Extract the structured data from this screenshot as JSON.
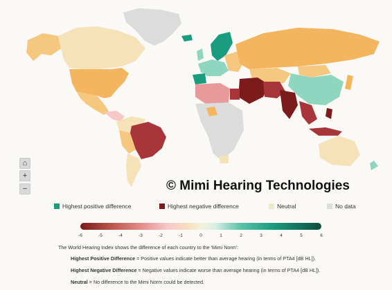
{
  "watermark": "© Mimi Hearing Technologies",
  "zoom": {
    "home_icon": "home-icon",
    "plus": "+",
    "minus": "−"
  },
  "legend": [
    {
      "label": "Highest positive difference",
      "color": "#1a9c7e"
    },
    {
      "label": "Highest negative difference",
      "color": "#7b1b1b"
    },
    {
      "label": "Neutral",
      "color": "#ece8c8"
    },
    {
      "label": "No data",
      "color": "#dcdcdc"
    }
  ],
  "scale": {
    "ticks": [
      "-6",
      "-5",
      "-4",
      "-3",
      "-2",
      "-1",
      "0",
      "1",
      "2",
      "3",
      "4",
      "5",
      "6"
    ],
    "min": -6,
    "max": 6
  },
  "notes": {
    "intro": "The World Hearing Index shows the difference of each country to the 'Mimi Norm':",
    "pos_bold": "Highest Positive Difference",
    "pos_text": " = Positive values indicate better than average hearing (in terms of PTA4 [dB HL]).",
    "neg_bold": "Highest Negative Difference",
    "neg_text": " = Negative values indicate worse than average hearing (in terms of PTA4 [dB HL]).",
    "neu_bold": "Neutral",
    "neu_text": " = No difference to the Mimi Norm could be detected."
  },
  "colors": {
    "no_data": "#dcdcdc",
    "light_orange": "#f6c77f",
    "orange": "#f3b65e",
    "pale": "#f6e2b8",
    "green": "#1a9c7e",
    "teal_light": "#8fd6c0",
    "dark_red": "#7b1b1b",
    "red": "#a8353a",
    "pink": "#e89a9a"
  }
}
